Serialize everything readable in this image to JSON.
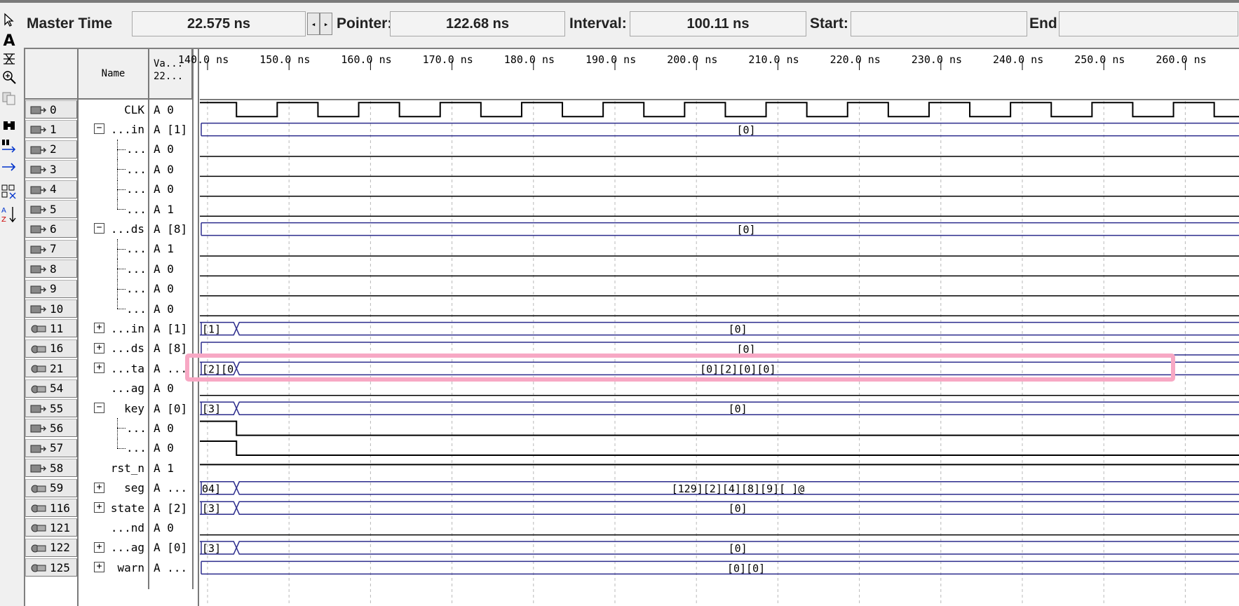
{
  "header": {
    "master_time_label": "Master Time",
    "master_time_value": "22.575 ns",
    "pointer_label": "Pointer:",
    "pointer_value": "122.68 ns",
    "interval_label": "Interval:",
    "interval_value": "100.11 ns",
    "start_label": "Start:",
    "start_value": "",
    "end_label": "End",
    "end_value": ""
  },
  "toolbar": {
    "icons": [
      "arrow-pointer-icon",
      "text-tool-icon",
      "node-finder-icon",
      "zoom-icon",
      "copy-icon",
      "binoculars-icon",
      "find-next-icon",
      "arrow-right-icon",
      "grid-icon",
      "sort-az-icon"
    ]
  },
  "columns": {
    "name_header": "Name",
    "value_header_line1": "Va...",
    "value_header_line2": "22..."
  },
  "timeline": {
    "ticks": [
      "140.0 ns",
      "150.0 ns",
      "160.0 ns",
      "170.0 ns",
      "180.0 ns",
      "190.0 ns",
      "200.0 ns",
      "210.0 ns",
      "220.0 ns",
      "230.0 ns",
      "240.0 ns",
      "250.0 ns",
      "260.0 ns"
    ]
  },
  "signals": [
    {
      "id": "0",
      "name": "CLK",
      "value": "A 0",
      "kind": "in",
      "group": "none",
      "wave": "clock"
    },
    {
      "id": "1",
      "name": "...in",
      "value": "A [1]",
      "kind": "in",
      "group": "minus",
      "wave": "bus",
      "bus_label": "[0]"
    },
    {
      "id": "2",
      "name": "...",
      "value": "A 0",
      "kind": "in",
      "group": "child",
      "wave": "low"
    },
    {
      "id": "3",
      "name": "...",
      "value": "A 0",
      "kind": "in",
      "group": "child",
      "wave": "low"
    },
    {
      "id": "4",
      "name": "...",
      "value": "A 0",
      "kind": "in",
      "group": "child",
      "wave": "low"
    },
    {
      "id": "5",
      "name": "...",
      "value": "A 1",
      "kind": "in",
      "group": "last",
      "wave": "low"
    },
    {
      "id": "6",
      "name": "...ds",
      "value": "A [8]",
      "kind": "in",
      "group": "minus",
      "wave": "bus",
      "bus_label": "[0]"
    },
    {
      "id": "7",
      "name": "...",
      "value": "A 1",
      "kind": "in",
      "group": "child",
      "wave": "low"
    },
    {
      "id": "8",
      "name": "...",
      "value": "A 0",
      "kind": "in",
      "group": "child",
      "wave": "low"
    },
    {
      "id": "9",
      "name": "...",
      "value": "A 0",
      "kind": "in",
      "group": "child",
      "wave": "low"
    },
    {
      "id": "10",
      "name": "...",
      "value": "A 0",
      "kind": "in",
      "group": "last",
      "wave": "low"
    },
    {
      "id": "11",
      "name": "...in",
      "value": "A [1]",
      "kind": "out",
      "group": "plus",
      "wave": "busx",
      "bus_pre": "[1]",
      "bus_label": "[0]"
    },
    {
      "id": "16",
      "name": "...ds",
      "value": "A [8]",
      "kind": "out",
      "group": "plus",
      "wave": "bus",
      "bus_label": "[0]"
    },
    {
      "id": "21",
      "name": "...ta",
      "value": "A ...",
      "kind": "out",
      "group": "plus",
      "wave": "busx",
      "bus_pre": "[2][0",
      "bus_label": "[0][2][0][0]"
    },
    {
      "id": "54",
      "name": "...ag",
      "value": "A 0",
      "kind": "out",
      "group": "none",
      "wave": "low"
    },
    {
      "id": "55",
      "name": "key",
      "value": "A [0]",
      "kind": "in",
      "group": "minus",
      "wave": "busx",
      "bus_pre": "[3]",
      "bus_label": "[0]"
    },
    {
      "id": "56",
      "name": "...",
      "value": "A 0",
      "kind": "in",
      "group": "child",
      "wave": "fall"
    },
    {
      "id": "57",
      "name": "...",
      "value": "A 0",
      "kind": "in",
      "group": "last",
      "wave": "fall"
    },
    {
      "id": "58",
      "name": "rst_n",
      "value": "A 1",
      "kind": "in",
      "group": "none",
      "wave": "high"
    },
    {
      "id": "59",
      "name": "seg",
      "value": "A ...",
      "kind": "out",
      "group": "plus",
      "wave": "busx",
      "bus_pre": "04]",
      "bus_label": "[129][2][4][8][9][ ]@"
    },
    {
      "id": "116",
      "name": "state",
      "value": "A [2]",
      "kind": "out",
      "group": "plus",
      "wave": "busx",
      "bus_pre": "[3]",
      "bus_label": "[0]"
    },
    {
      "id": "121",
      "name": "...nd",
      "value": "A 0",
      "kind": "out",
      "group": "none",
      "wave": "low"
    },
    {
      "id": "122",
      "name": "...ag",
      "value": "A [0]",
      "kind": "out",
      "group": "plus",
      "wave": "busx",
      "bus_pre": "[3]",
      "bus_label": "[0]"
    },
    {
      "id": "125",
      "name": "warn",
      "value": "A ...",
      "kind": "out",
      "group": "plus",
      "wave": "bus",
      "bus_label": "[0][0]"
    }
  ],
  "colors": {
    "bus": "#2b2b8c",
    "wire": "#000000",
    "grid": "#b8b8b8",
    "highlight": "#f7a8c4"
  }
}
